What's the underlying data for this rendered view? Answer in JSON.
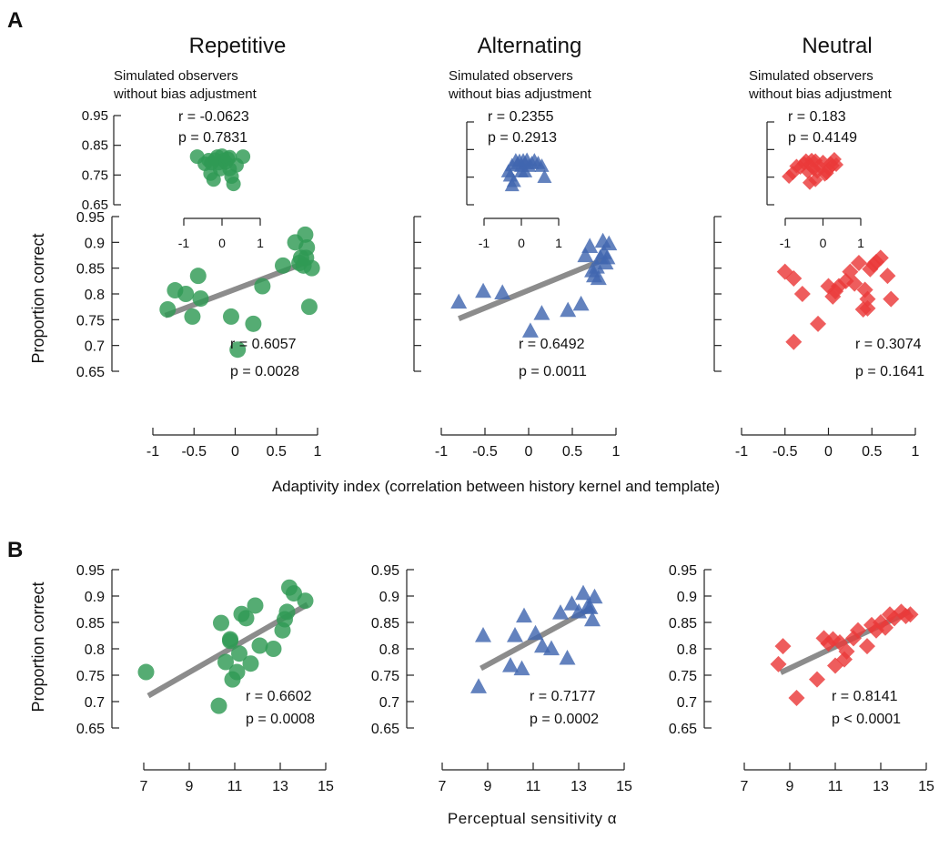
{
  "figure": {
    "panel_labels": {
      "a": "A",
      "b": "B"
    },
    "column_titles": [
      "Repetitive",
      "Alternating",
      "Neutral"
    ],
    "inset_caption_line1": "Simulated observers",
    "inset_caption_line2": "without bias adjustment",
    "xlabel_a": "Adaptivity index (correlation between history kernel and template)",
    "xlabel_b": "Perceptual sensitivity α",
    "ylabel": "Proportion correct"
  },
  "colors": {
    "repetitive": "#2f9a54",
    "alternating": "#4166b0",
    "neutral": "#ea3939",
    "fit_line": "#8c8c8c"
  },
  "chart_data": [
    {
      "type": "scatter",
      "panel": "A",
      "condition": "Repetitive",
      "marker": "circle",
      "xlabel": "Adaptivity index (correlation between history kernel and template)",
      "ylabel": "Proportion correct",
      "xlim": [
        -1,
        1
      ],
      "ylim": [
        0.65,
        0.95
      ],
      "xticks": [
        -1,
        -0.5,
        0,
        0.5,
        1
      ],
      "yticks": [
        0.65,
        0.7,
        0.75,
        0.8,
        0.85,
        0.9,
        0.95
      ],
      "x": [
        -0.82,
        -0.73,
        -0.6,
        -0.52,
        -0.45,
        -0.42,
        -0.05,
        0.03,
        0.22,
        0.33,
        0.58,
        0.73,
        0.78,
        0.8,
        0.83,
        0.85,
        0.86,
        0.87,
        0.9,
        0.93
      ],
      "y": [
        0.77,
        0.807,
        0.8,
        0.756,
        0.835,
        0.791,
        0.756,
        0.692,
        0.742,
        0.815,
        0.855,
        0.9,
        0.86,
        0.87,
        0.855,
        0.915,
        0.87,
        0.89,
        0.775,
        0.85
      ],
      "fit": {
        "x": [
          -0.85,
          0.88
        ],
        "y": [
          0.758,
          0.862
        ]
      },
      "stats": {
        "r": "r = 0.6057",
        "p": "p = 0.0028"
      },
      "inset": {
        "type": "scatter",
        "xlim": [
          -1,
          1
        ],
        "ylim": [
          0.65,
          0.95
        ],
        "xticks": [
          -1,
          0,
          1
        ],
        "yticks": [
          0.65,
          0.75,
          0.85,
          0.95
        ],
        "x": [
          -0.65,
          -0.45,
          -0.35,
          -0.3,
          -0.22,
          -0.18,
          -0.12,
          -0.08,
          -0.05,
          0.0,
          0.05,
          0.1,
          0.15,
          0.2,
          0.25,
          0.3,
          0.38,
          0.55,
          0.2,
          -0.28
        ],
        "y": [
          0.812,
          0.788,
          0.8,
          0.755,
          0.735,
          0.802,
          0.812,
          0.79,
          0.77,
          0.815,
          0.8,
          0.792,
          0.805,
          0.81,
          0.745,
          0.72,
          0.783,
          0.812,
          0.77,
          0.79
        ],
        "stats": {
          "r": "r = -0.0623",
          "p": "p = 0.7831"
        }
      }
    },
    {
      "type": "scatter",
      "panel": "A",
      "condition": "Alternating",
      "marker": "triangle",
      "xlim": [
        -1,
        1
      ],
      "ylim": [
        0.65,
        0.95
      ],
      "xticks": [
        -1,
        -0.5,
        0,
        0.5,
        1
      ],
      "yticks": [
        0.65,
        0.7,
        0.75,
        0.8,
        0.85,
        0.9,
        0.95
      ],
      "x": [
        -0.8,
        -0.52,
        -0.3,
        0.02,
        0.15,
        0.45,
        0.6,
        0.65,
        0.7,
        0.73,
        0.75,
        0.78,
        0.8,
        0.82,
        0.85,
        0.86,
        0.88,
        0.9,
        0.92
      ],
      "y": [
        0.784,
        0.805,
        0.802,
        0.728,
        0.762,
        0.768,
        0.78,
        0.874,
        0.892,
        0.845,
        0.835,
        0.852,
        0.83,
        0.87,
        0.902,
        0.88,
        0.86,
        0.87,
        0.897
      ],
      "fit": {
        "x": [
          -0.8,
          0.88
        ],
        "y": [
          0.752,
          0.868
        ]
      },
      "stats": {
        "r": "r = 0.6492",
        "p": "p = 0.0011"
      },
      "inset": {
        "type": "scatter",
        "xlim": [
          -1,
          1
        ],
        "ylim": [
          0.65,
          0.95
        ],
        "xticks": [
          -1,
          0,
          1
        ],
        "yticks": [
          0.65,
          0.75,
          0.85,
          0.95
        ],
        "x": [
          -0.35,
          -0.3,
          -0.25,
          -0.2,
          -0.15,
          -0.1,
          -0.05,
          0.0,
          0.05,
          0.1,
          0.15,
          0.2,
          0.28,
          0.35,
          0.45,
          0.55,
          -0.25,
          0.0,
          0.1,
          0.62
        ],
        "y": [
          0.77,
          0.755,
          0.792,
          0.735,
          0.81,
          0.798,
          0.808,
          0.79,
          0.81,
          0.8,
          0.812,
          0.79,
          0.8,
          0.81,
          0.8,
          0.79,
          0.72,
          0.77,
          0.77,
          0.75
        ],
        "stats": {
          "r": "r = 0.2355",
          "p": "p = 0.2913"
        }
      }
    },
    {
      "type": "scatter",
      "panel": "A",
      "condition": "Neutral",
      "marker": "diamond",
      "xlim": [
        -1,
        1
      ],
      "ylim": [
        0.65,
        0.95
      ],
      "xticks": [
        -1,
        -0.5,
        0,
        0.5,
        1
      ],
      "yticks": [
        0.65,
        0.7,
        0.75,
        0.8,
        0.85,
        0.9,
        0.95
      ],
      "x": [
        -0.5,
        -0.4,
        -0.3,
        -0.4,
        -0.12,
        0.0,
        0.05,
        0.08,
        0.12,
        0.2,
        0.25,
        0.3,
        0.35,
        0.42,
        0.45,
        0.48,
        0.52,
        0.55,
        0.6,
        0.68,
        0.72,
        0.4,
        0.45
      ],
      "y": [
        0.843,
        0.83,
        0.8,
        0.707,
        0.742,
        0.815,
        0.795,
        0.805,
        0.815,
        0.825,
        0.843,
        0.82,
        0.86,
        0.808,
        0.772,
        0.848,
        0.857,
        0.862,
        0.87,
        0.835,
        0.79,
        0.77,
        0.79
      ],
      "stats": {
        "r": "r = 0.3074",
        "p": "p = 0.1641"
      },
      "inset": {
        "type": "scatter",
        "xlim": [
          -1,
          1
        ],
        "ylim": [
          0.65,
          0.95
        ],
        "xticks": [
          -1,
          0,
          1
        ],
        "yticks": [
          0.65,
          0.75,
          0.85,
          0.95
        ],
        "x": [
          -0.9,
          -0.8,
          -0.7,
          -0.6,
          -0.5,
          -0.45,
          -0.4,
          -0.35,
          -0.3,
          -0.25,
          -0.2,
          -0.15,
          -0.1,
          0.0,
          0.1,
          0.15,
          0.2,
          0.25,
          0.3,
          0.35,
          -0.35,
          -0.2,
          0.05
        ],
        "y": [
          0.752,
          0.765,
          0.79,
          0.785,
          0.8,
          0.81,
          0.77,
          0.795,
          0.812,
          0.78,
          0.81,
          0.77,
          0.79,
          0.805,
          0.765,
          0.78,
          0.8,
          0.792,
          0.815,
          0.795,
          0.73,
          0.74,
          0.76
        ],
        "stats": {
          "r": "r = 0.183",
          "p": "p = 0.4149"
        }
      }
    },
    {
      "type": "scatter",
      "panel": "B",
      "condition": "Repetitive",
      "marker": "circle",
      "xlabel": "Perceptual sensitivity α",
      "ylabel": "Proportion correct",
      "xlim": [
        7,
        15
      ],
      "ylim": [
        0.65,
        0.95
      ],
      "xticks": [
        7,
        9,
        11,
        13,
        15
      ],
      "yticks": [
        0.65,
        0.7,
        0.75,
        0.8,
        0.85,
        0.9,
        0.95
      ],
      "x": [
        7.1,
        10.3,
        10.4,
        10.6,
        10.8,
        10.8,
        10.9,
        11.1,
        11.2,
        11.3,
        11.5,
        11.7,
        11.9,
        12.1,
        12.7,
        13.1,
        13.2,
        13.3,
        13.4,
        13.6,
        14.1
      ],
      "y": [
        0.756,
        0.692,
        0.849,
        0.775,
        0.815,
        0.818,
        0.742,
        0.756,
        0.791,
        0.866,
        0.858,
        0.772,
        0.882,
        0.806,
        0.8,
        0.835,
        0.856,
        0.87,
        0.916,
        0.905,
        0.891
      ],
      "fit": {
        "x": [
          7.2,
          14.2
        ],
        "y": [
          0.711,
          0.884
        ]
      },
      "stats": {
        "r": "r = 0.6602",
        "p": "p = 0.0008"
      }
    },
    {
      "type": "scatter",
      "panel": "B",
      "condition": "Alternating",
      "marker": "triangle",
      "xlim": [
        7,
        15
      ],
      "ylim": [
        0.65,
        0.95
      ],
      "xticks": [
        7,
        9,
        11,
        13,
        15
      ],
      "yticks": [
        0.65,
        0.7,
        0.75,
        0.8,
        0.85,
        0.9,
        0.95
      ],
      "x": [
        8.6,
        8.8,
        10.0,
        10.2,
        10.5,
        10.6,
        11.1,
        11.4,
        11.8,
        12.2,
        12.5,
        12.7,
        13.0,
        13.2,
        13.4,
        13.5,
        13.6,
        13.7
      ],
      "y": [
        0.728,
        0.825,
        0.768,
        0.825,
        0.762,
        0.862,
        0.829,
        0.805,
        0.8,
        0.868,
        0.782,
        0.885,
        0.87,
        0.905,
        0.88,
        0.878,
        0.855,
        0.898
      ],
      "fit": {
        "x": [
          8.7,
          13.6
        ],
        "y": [
          0.763,
          0.878
        ]
      },
      "stats": {
        "r": "r = 0.7177",
        "p": "p = 0.0002"
      }
    },
    {
      "type": "scatter",
      "panel": "B",
      "condition": "Neutral",
      "marker": "diamond",
      "xlim": [
        7,
        15
      ],
      "ylim": [
        0.65,
        0.95
      ],
      "xticks": [
        7,
        9,
        11,
        13,
        15
      ],
      "yticks": [
        0.65,
        0.7,
        0.75,
        0.8,
        0.85,
        0.9,
        0.95
      ],
      "x": [
        8.5,
        8.7,
        9.3,
        10.2,
        10.5,
        10.7,
        11.0,
        11.2,
        11.5,
        11.8,
        12.0,
        12.4,
        12.6,
        12.8,
        13.0,
        13.2,
        13.4,
        13.6,
        13.9,
        14.1,
        14.3,
        10.9,
        11.4
      ],
      "y": [
        0.771,
        0.805,
        0.707,
        0.742,
        0.82,
        0.81,
        0.768,
        0.812,
        0.795,
        0.82,
        0.835,
        0.805,
        0.845,
        0.835,
        0.85,
        0.84,
        0.865,
        0.858,
        0.87,
        0.862,
        0.865,
        0.818,
        0.78
      ],
      "fit": {
        "x": [
          8.6,
          14.3
        ],
        "y": [
          0.755,
          0.871
        ]
      },
      "stats": {
        "r": "r = 0.8141",
        "p": "p < 0.0001"
      }
    }
  ]
}
